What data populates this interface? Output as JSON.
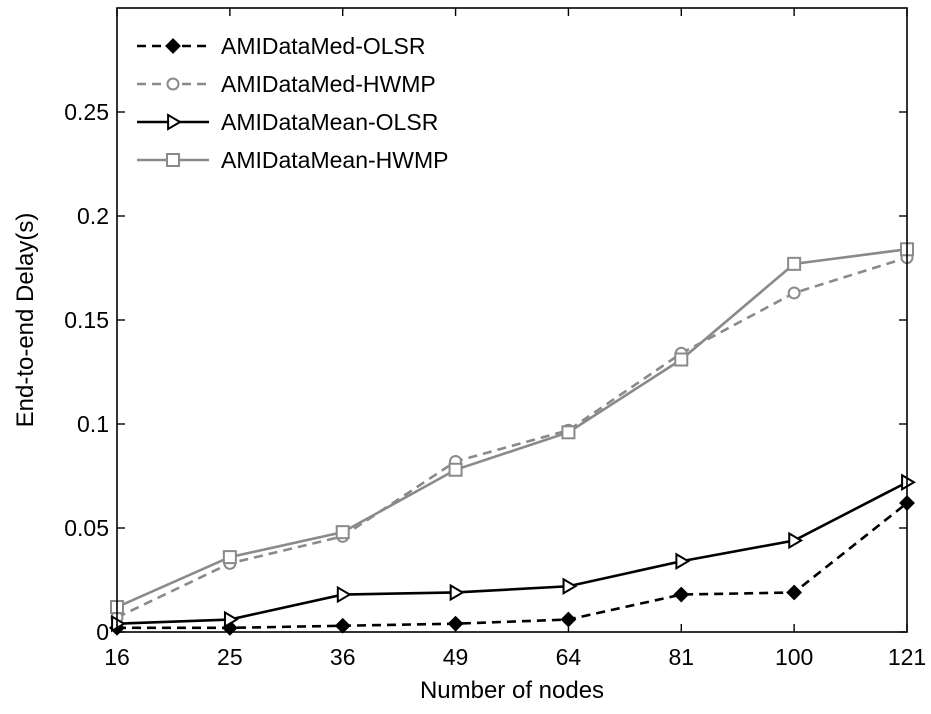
{
  "chart_data": {
    "type": "line",
    "title": "",
    "xlabel": "Number of nodes",
    "ylabel": "End-to-end Delay(s)",
    "x": [
      16,
      25,
      36,
      49,
      64,
      81,
      100,
      121
    ],
    "x_tick_labels": [
      "16",
      "25",
      "36",
      "49",
      "64",
      "81",
      "100",
      "121"
    ],
    "xlim": [
      16,
      121
    ],
    "ylim": [
      0,
      0.3
    ],
    "y_ticks": [
      0,
      0.05,
      0.1,
      0.15,
      0.2,
      0.25
    ],
    "y_tick_labels": [
      "0",
      "0.05",
      "0.1",
      "0.15",
      "0.2",
      "0.25"
    ],
    "grid": false,
    "legend_position": "top-left",
    "series": [
      {
        "name": "AMIDataMed-OLSR",
        "values": [
          0.002,
          0.002,
          0.003,
          0.004,
          0.006,
          0.018,
          0.019,
          0.062
        ],
        "color": "#000000",
        "line_style": "dashed",
        "marker": "diamond"
      },
      {
        "name": "AMIDataMed-HWMP",
        "values": [
          0.007,
          0.033,
          0.046,
          0.082,
          0.097,
          0.134,
          0.163,
          0.18
        ],
        "color": "#8a8a8a",
        "line_style": "dashed",
        "marker": "circle"
      },
      {
        "name": "AMIDataMean-OLSR",
        "values": [
          0.004,
          0.006,
          0.018,
          0.019,
          0.022,
          0.034,
          0.044,
          0.072
        ],
        "color": "#000000",
        "line_style": "solid",
        "marker": "triangle-right"
      },
      {
        "name": "AMIDataMean-HWMP",
        "values": [
          0.012,
          0.036,
          0.048,
          0.078,
          0.096,
          0.131,
          0.177,
          0.184
        ],
        "color": "#8a8a8a",
        "line_style": "solid",
        "marker": "square"
      }
    ]
  }
}
